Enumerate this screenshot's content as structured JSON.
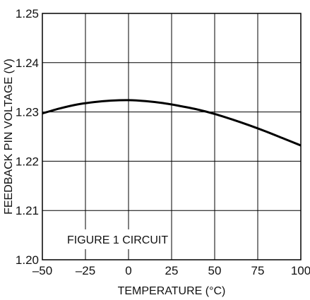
{
  "chart_data": {
    "type": "line",
    "xlabel": "TEMPERATURE (°C)",
    "ylabel": "FEEDBACK PIN VOLTAGE (V)",
    "xlim": [
      -50,
      100
    ],
    "ylim": [
      1.2,
      1.25
    ],
    "x_ticks": [
      "–50",
      "–25",
      "0",
      "25",
      "50",
      "75",
      "100"
    ],
    "y_ticks": [
      "1.20",
      "1.21",
      "1.22",
      "1.23",
      "1.24",
      "1.25"
    ],
    "grid": true,
    "annotation": "FIGURE 1 CIRCUIT",
    "series": [
      {
        "x": [
          -50,
          -40,
          -30,
          -20,
          -10,
          0,
          10,
          20,
          30,
          40,
          50,
          60,
          70,
          80,
          90,
          100
        ],
        "y": [
          1.2297,
          1.2307,
          1.2315,
          1.232,
          1.2323,
          1.2324,
          1.2322,
          1.2318,
          1.2312,
          1.2305,
          1.2296,
          1.2285,
          1.2273,
          1.226,
          1.2246,
          1.2232
        ]
      }
    ]
  }
}
